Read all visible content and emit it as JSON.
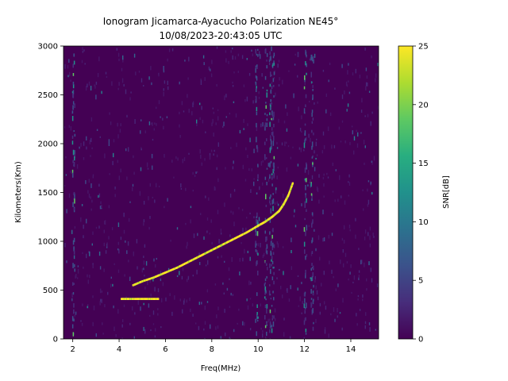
{
  "chart_data": {
    "type": "heatmap",
    "title_line1": "Ionogram Jicamarca-Ayacucho Polarization NE45°",
    "title_line2": "10/08/2023-20:43:05 UTC",
    "xlabel": "Freq(MHz)",
    "ylabel": "Kilometers(Km)",
    "xlim": [
      1.6,
      15.2
    ],
    "ylim": [
      0,
      3000
    ],
    "xticks": [
      2,
      4,
      6,
      8,
      10,
      12,
      14
    ],
    "yticks": [
      0,
      500,
      1000,
      1500,
      2000,
      2500,
      3000
    ],
    "colorbar": {
      "label": "SNR[dB]",
      "range": [
        0,
        25
      ],
      "ticks": [
        0,
        5,
        10,
        15,
        20,
        25
      ],
      "colormap": "viridis"
    },
    "background_color": "#440154",
    "trace_color": "#fde725",
    "trace": {
      "freq_mhz": [
        4.6,
        5.0,
        5.5,
        6.0,
        6.5,
        7.0,
        7.5,
        8.0,
        8.5,
        9.0,
        9.5,
        10.0,
        10.3,
        10.6,
        10.9,
        11.1,
        11.3,
        11.5
      ],
      "height_km": [
        550,
        590,
        630,
        680,
        730,
        790,
        850,
        910,
        970,
        1030,
        1090,
        1160,
        1200,
        1250,
        1310,
        1380,
        1470,
        1600
      ]
    },
    "lower_trace": {
      "freq_mhz": [
        4.1,
        4.4,
        4.8,
        5.1,
        5.4,
        5.7
      ],
      "height_km": [
        410,
        410,
        410,
        410,
        410,
        410
      ]
    },
    "interference_bands_mhz": [
      2.0,
      9.9,
      10.3,
      10.5,
      10.6,
      12.0,
      12.3
    ]
  }
}
